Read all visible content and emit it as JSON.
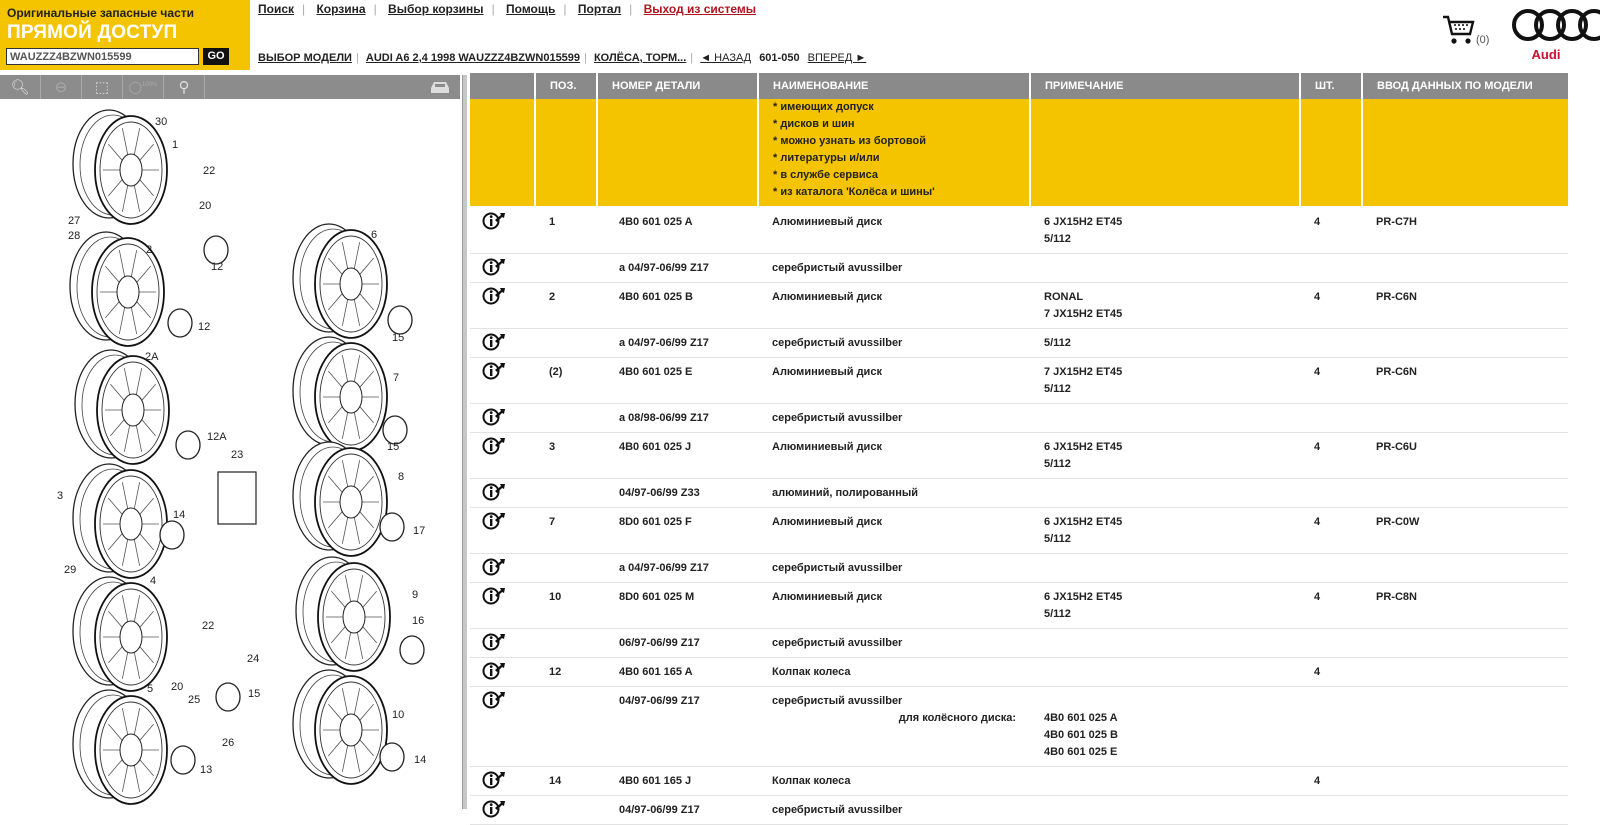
{
  "brand": {
    "subtitle": "Оригинальные запасные части",
    "title": "ПРЯМОЙ ДОСТУП",
    "vin_value": "WAUZZZ4BZWN015599",
    "go_label": "GO"
  },
  "topnav": [
    "Поиск",
    "Корзина",
    "Выбор корзины",
    "Помощь",
    "Портал",
    "Выход из системы"
  ],
  "breadcrumb": {
    "model": "ВЫБОР МОДЕЛИ",
    "vehicle": "AUDI A6 2,4 1998 WAUZZZ4BZWN015599",
    "group": "КОЛЁСА, ТОРМ...",
    "back": "◄ НАЗАД",
    "page": "601-050",
    "forward": "ВПЕРЕД ►"
  },
  "cart": {
    "count": "(0)",
    "icon": "cart-icon"
  },
  "logo": {
    "word": "Audi"
  },
  "toolbar": {
    "icons": [
      "zoom-in-icon",
      "zoom-out-icon",
      "zoom-fit-icon",
      "zoom-100-icon",
      "search-icon",
      "car-icon"
    ],
    "zoom100": "100%"
  },
  "colors": {
    "accent": "#f5c400",
    "header_gray": "#8a8a8b",
    "logout": "#b0141e",
    "audi_red": "#c8102e"
  },
  "table": {
    "headers": [
      "",
      "ПОЗ.",
      "НОМЕР ДЕТАЛИ",
      "НАИМЕНОВАНИЕ",
      "ПРИМЕЧАНИЕ",
      "ШТ.",
      "ВВОД ДАННЫХ ПО МОДЕЛИ"
    ],
    "note_lines": [
      "* имеющих допуск",
      "* дисков и шин",
      "* можно узнать из бортовой",
      "* литературы и/или",
      "* в службе сервиса",
      "* из каталога 'Колёса и шины'"
    ],
    "rows": [
      {
        "pos": "1",
        "part": "4B0 601 025 A",
        "name": "Алюминиевый диск",
        "note": [
          "6  JX15H2 ET45",
          "5/112"
        ],
        "qty": "4",
        "model": "PR-C7H"
      },
      {
        "pos": "",
        "part": "a 04/97-06/99 Z17",
        "name": "серебристый avussilber",
        "note": [],
        "qty": "",
        "model": ""
      },
      {
        "pos": "2",
        "part": "4B0 601 025 B",
        "name": "Алюминиевый диск",
        "note": [
          "RONAL",
          "7  JX15H2 ET45"
        ],
        "qty": "4",
        "model": "PR-C6N"
      },
      {
        "pos": "",
        "part": "a 04/97-06/99 Z17",
        "name": "серебристый avussilber",
        "note": [
          "5/112"
        ],
        "qty": "",
        "model": ""
      },
      {
        "pos": "(2)",
        "part": "4B0 601 025 E",
        "name": "Алюминиевый диск",
        "note": [
          "7  JX15H2 ET45",
          "5/112"
        ],
        "qty": "4",
        "model": "PR-C6N"
      },
      {
        "pos": "",
        "part": "a 08/98-06/99 Z17",
        "name": "серебристый avussilber",
        "note": [],
        "qty": "",
        "model": ""
      },
      {
        "pos": "3",
        "part": "4B0 601 025 J",
        "name": "Алюминиевый диск",
        "note": [
          "6  JX15H2 ET45",
          "5/112"
        ],
        "qty": "4",
        "model": "PR-C6U"
      },
      {
        "pos": "",
        "part": "04/97-06/99 Z33",
        "name": "алюминий, полированный",
        "note": [],
        "qty": "",
        "model": ""
      },
      {
        "pos": "7",
        "part": "8D0 601 025 F",
        "name": "Алюминиевый диск",
        "note": [
          "6  JX15H2 ET45",
          "5/112"
        ],
        "qty": "4",
        "model": "PR-C0W"
      },
      {
        "pos": "",
        "part": "a 04/97-06/99 Z17",
        "name": "серебристый avussilber",
        "note": [],
        "qty": "",
        "model": ""
      },
      {
        "pos": "10",
        "part": "8D0 601 025 M",
        "name": "Алюминиевый диск",
        "note": [
          "6  JX15H2 ET45",
          "5/112"
        ],
        "qty": "4",
        "model": "PR-C8N"
      },
      {
        "pos": "",
        "part": "06/97-06/99 Z17",
        "name": "серебристый avussilber",
        "note": [],
        "qty": "",
        "model": ""
      },
      {
        "pos": "12",
        "part": "4B0 601 165 A",
        "name": "Колпак колеса",
        "note": [],
        "qty": "4",
        "model": ""
      },
      {
        "pos": "",
        "part": "04/97-06/99 Z17",
        "name": "серебристый avussilber",
        "for_label": "для колёсного диска:",
        "note": [
          "",
          "4B0 601 025 A",
          "4B0 601 025 B",
          "4B0 601 025 E"
        ],
        "qty": "",
        "model": ""
      },
      {
        "pos": "14",
        "part": "4B0 601 165 J",
        "name": "Колпак колеса",
        "note": [],
        "qty": "4",
        "model": ""
      },
      {
        "pos": "",
        "part": "04/97-06/99 Z17",
        "name": "серебристый avussilber",
        "note": [],
        "qty": "",
        "model": ""
      }
    ]
  },
  "diagram": {
    "callouts": [
      "30",
      "1",
      "22",
      "20",
      "27",
      "28",
      "12",
      "2",
      "12",
      "6",
      "15",
      "2A",
      "12A",
      "7",
      "15",
      "23",
      "8",
      "3",
      "14",
      "17",
      "29",
      "4",
      "22",
      "9",
      "16",
      "24",
      "20",
      "25",
      "15",
      "5",
      "26",
      "10",
      "13",
      "14"
    ]
  }
}
